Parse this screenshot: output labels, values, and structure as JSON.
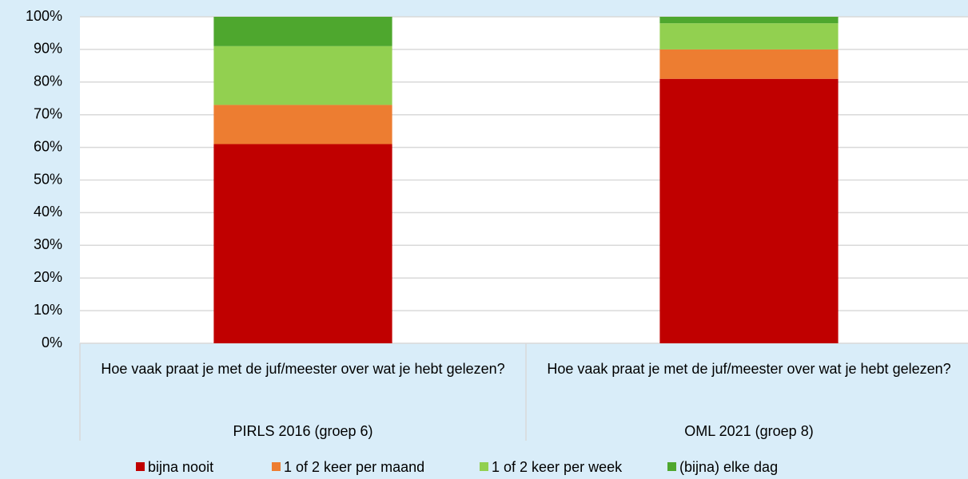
{
  "chart_data": {
    "type": "stacked_bar",
    "categories": [
      "Hoe vaak praat je met de juf/meester over wat je hebt gelezen?",
      "Hoe vaak praat je met de juf/meester over wat je hebt gelezen?"
    ],
    "groups": [
      "PIRLS 2016 (groep 6)",
      "OML 2021 (groep 8)"
    ],
    "series": [
      {
        "name": "bijna nooit",
        "color": "#c00000",
        "values": [
          61,
          81
        ]
      },
      {
        "name": "1 of 2 keer per maand",
        "color": "#ed7d31",
        "values": [
          12,
          9
        ]
      },
      {
        "name": "1 of 2 keer per week",
        "color": "#92d050",
        "values": [
          18,
          8
        ]
      },
      {
        "name": "(bijna) elke dag",
        "color": "#4ea72e",
        "values": [
          9,
          2
        ]
      }
    ],
    "ylim": [
      0,
      100
    ],
    "yticks": [
      {
        "value": 0,
        "label": "0%"
      },
      {
        "value": 10,
        "label": "10%"
      },
      {
        "value": 20,
        "label": "20%"
      },
      {
        "value": 30,
        "label": "30%"
      },
      {
        "value": 40,
        "label": "40%"
      },
      {
        "value": 50,
        "label": "50%"
      },
      {
        "value": 60,
        "label": "60%"
      },
      {
        "value": 70,
        "label": "70%"
      },
      {
        "value": 80,
        "label": "80%"
      },
      {
        "value": 90,
        "label": "90%"
      },
      {
        "value": 100,
        "label": "100%"
      }
    ],
    "grid": true,
    "legend": "bottom"
  }
}
